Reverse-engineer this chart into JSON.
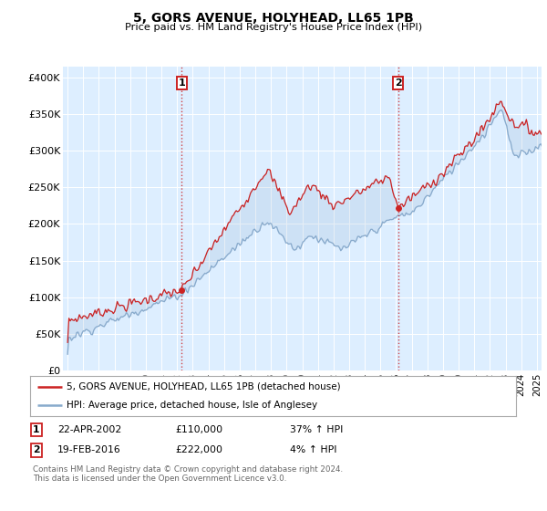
{
  "title": "5, GORS AVENUE, HOLYHEAD, LL65 1PB",
  "subtitle": "Price paid vs. HM Land Registry's House Price Index (HPI)",
  "ylabel_ticks": [
    "£0",
    "£50K",
    "£100K",
    "£150K",
    "£200K",
    "£250K",
    "£300K",
    "£350K",
    "£400K"
  ],
  "ytick_values": [
    0,
    50000,
    100000,
    150000,
    200000,
    250000,
    300000,
    350000,
    400000
  ],
  "ylim": [
    0,
    415000
  ],
  "xlim_start": 1994.7,
  "xlim_end": 2025.3,
  "background_color": "#ddeeff",
  "line1_color": "#cc2222",
  "line2_color": "#88aacc",
  "vline_color": "#cc2222",
  "marker1_year": 2002.3,
  "marker2_year": 2016.12,
  "marker1_value": 110000,
  "marker2_value": 222000,
  "legend_label1": "5, GORS AVENUE, HOLYHEAD, LL65 1PB (detached house)",
  "legend_label2": "HPI: Average price, detached house, Isle of Anglesey",
  "copyright": "Contains HM Land Registry data © Crown copyright and database right 2024.\nThis data is licensed under the Open Government Licence v3.0.",
  "xtick_years": [
    1995,
    1996,
    1997,
    1998,
    1999,
    2000,
    2001,
    2002,
    2003,
    2004,
    2005,
    2006,
    2007,
    2008,
    2009,
    2010,
    2011,
    2012,
    2013,
    2014,
    2015,
    2016,
    2017,
    2018,
    2019,
    2020,
    2021,
    2022,
    2023,
    2024,
    2025
  ]
}
